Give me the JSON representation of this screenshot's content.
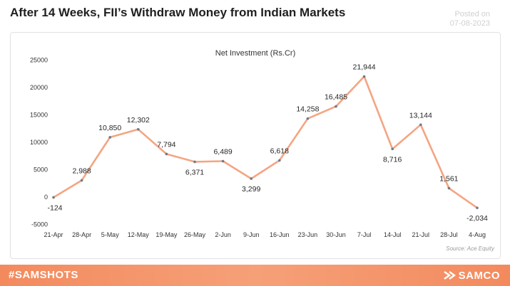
{
  "header": {
    "title": "After 14 Weeks, FII’s Withdraw Money from Indian Markets",
    "posted_label": "Posted on",
    "posted_date": "07-08-2023"
  },
  "source": "Source:  Ace Equity",
  "footer": {
    "hashtag": "#SAMSHOTS",
    "brand": "SAMCO",
    "brand_icon": "samco-logo-icon"
  },
  "colors": {
    "line": "#f4a582",
    "marker": "#6d7b8f",
    "footer": "#f38a5e"
  },
  "chart_data": {
    "type": "line",
    "title": "Net Investment (Rs.Cr)",
    "xlabel": "",
    "ylabel": "",
    "categories": [
      "21-Apr",
      "28-Apr",
      "5-May",
      "12-May",
      "19-May",
      "26-May",
      "2-Jun",
      "9-Jun",
      "16-Jun",
      "23-Jun",
      "30-Jun",
      "7-Jul",
      "14-Jul",
      "21-Jul",
      "28-Jul",
      "4-Aug"
    ],
    "values": [
      -124,
      2988,
      10850,
      12302,
      7794,
      6371,
      6489,
      3299,
      6618,
      14258,
      16485,
      21944,
      8716,
      13144,
      1561,
      -2034
    ],
    "data_labels": [
      "-124",
      "2,988",
      "10,850",
      "12,302",
      "7,794",
      "6,371",
      "6,489",
      "3,299",
      "6,618",
      "14,258",
      "16,485",
      "21,944",
      "8,716",
      "13,144",
      "1,561",
      "-2,034"
    ],
    "yticks": [
      "-5000",
      "0",
      "5000",
      "10000",
      "15000",
      "20000",
      "25000"
    ],
    "ylim": [
      -5000,
      25000
    ],
    "grid": false,
    "legend": "none"
  }
}
